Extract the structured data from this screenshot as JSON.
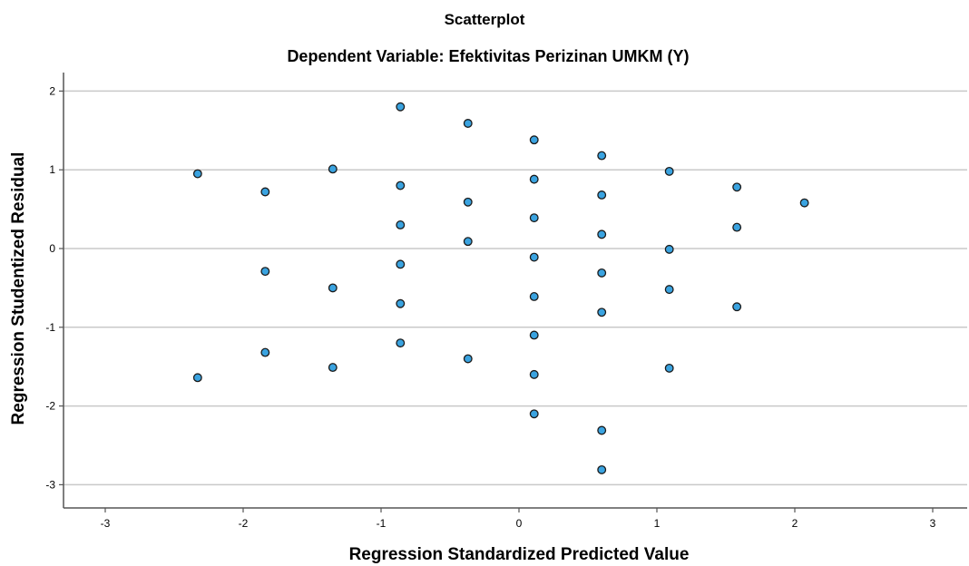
{
  "chart_data": {
    "type": "scatter",
    "title": "Scatterplot",
    "subtitle": "Dependent Variable: Efektivitas Perizinan UMKM (Y)",
    "xlabel": "Regression Standardized Predicted Value",
    "ylabel": "Regression Studentized Residual",
    "xlim": [
      -3.3,
      3.2
    ],
    "ylim": [
      -3.3,
      2.3
    ],
    "xticks": [
      -3,
      -2,
      -1,
      0,
      1,
      2,
      3
    ],
    "yticks": [
      2,
      1,
      0,
      -1,
      -2,
      -3
    ],
    "grid": {
      "horizontal": true,
      "vertical": false
    },
    "colors": {
      "point_fill": "#3aa3e0",
      "point_stroke": "#1a1a1a",
      "grid": "#c9c9c9",
      "axis": "#555555"
    },
    "points": [
      {
        "x": -2.33,
        "y": 0.95
      },
      {
        "x": -2.33,
        "y": -1.64
      },
      {
        "x": -1.84,
        "y": 0.72
      },
      {
        "x": -1.84,
        "y": -0.29
      },
      {
        "x": -1.84,
        "y": -1.32
      },
      {
        "x": -1.35,
        "y": 1.01
      },
      {
        "x": -1.35,
        "y": -0.5
      },
      {
        "x": -1.35,
        "y": -1.51
      },
      {
        "x": -0.86,
        "y": 1.8
      },
      {
        "x": -0.86,
        "y": 0.8
      },
      {
        "x": -0.86,
        "y": 0.3
      },
      {
        "x": -0.86,
        "y": -0.2
      },
      {
        "x": -0.86,
        "y": -0.7
      },
      {
        "x": -0.86,
        "y": -1.2
      },
      {
        "x": -0.37,
        "y": 1.59
      },
      {
        "x": -0.37,
        "y": 0.59
      },
      {
        "x": -0.37,
        "y": 0.09
      },
      {
        "x": -0.37,
        "y": -1.4
      },
      {
        "x": 0.11,
        "y": 1.38
      },
      {
        "x": 0.11,
        "y": 0.88
      },
      {
        "x": 0.11,
        "y": 0.39
      },
      {
        "x": 0.11,
        "y": -0.11
      },
      {
        "x": 0.11,
        "y": -0.61
      },
      {
        "x": 0.11,
        "y": -1.1
      },
      {
        "x": 0.11,
        "y": -1.6
      },
      {
        "x": 0.11,
        "y": -2.1
      },
      {
        "x": 0.6,
        "y": 1.18
      },
      {
        "x": 0.6,
        "y": 0.68
      },
      {
        "x": 0.6,
        "y": 0.18
      },
      {
        "x": 0.6,
        "y": -0.31
      },
      {
        "x": 0.6,
        "y": -0.81
      },
      {
        "x": 0.6,
        "y": -2.31
      },
      {
        "x": 0.6,
        "y": -2.81
      },
      {
        "x": 1.09,
        "y": 0.98
      },
      {
        "x": 1.09,
        "y": -0.01
      },
      {
        "x": 1.09,
        "y": -0.52
      },
      {
        "x": 1.09,
        "y": -1.52
      },
      {
        "x": 1.58,
        "y": 0.78
      },
      {
        "x": 1.58,
        "y": 0.27
      },
      {
        "x": 1.58,
        "y": -0.74
      },
      {
        "x": 2.07,
        "y": 0.58
      }
    ]
  }
}
